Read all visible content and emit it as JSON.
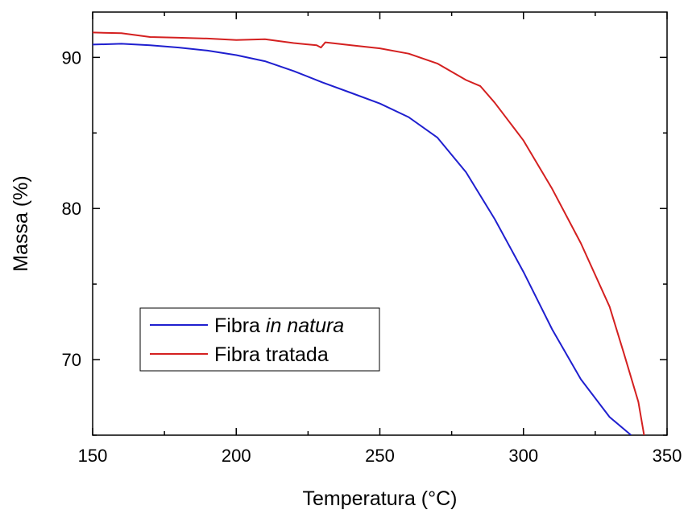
{
  "chart_data": {
    "type": "line",
    "xlabel": "Temperatura (°C)",
    "ylabel": "Massa (%)",
    "xlim": [
      150,
      350
    ],
    "ylim": [
      65,
      93
    ],
    "xticks": [
      150,
      200,
      250,
      300,
      350
    ],
    "yticks": [
      70,
      80,
      90
    ],
    "grid": false,
    "legend_position": "bottom-left",
    "series": [
      {
        "name_parts": [
          "Fibra ",
          "in natura"
        ],
        "color": "#1f1fcf",
        "x": [
          150,
          160,
          170,
          180,
          190,
          200,
          210,
          220,
          230,
          240,
          250,
          260,
          270,
          280,
          290,
          300,
          310,
          320,
          330,
          337.5
        ],
        "y": [
          90.85,
          90.9,
          90.8,
          90.65,
          90.45,
          90.15,
          89.75,
          89.1,
          88.35,
          87.65,
          86.95,
          86.05,
          84.7,
          82.4,
          79.3,
          75.8,
          72.0,
          68.7,
          66.2,
          65.0
        ]
      },
      {
        "name": "Fibra tratada",
        "color": "#d42020",
        "x": [
          150,
          160,
          170,
          180,
          190,
          200,
          210,
          220,
          228,
          229.5,
          231,
          240,
          250,
          260,
          270,
          280,
          285,
          290,
          300,
          310,
          320,
          330,
          335,
          340,
          342
        ],
        "y": [
          91.65,
          91.6,
          91.35,
          91.3,
          91.25,
          91.15,
          91.2,
          90.95,
          90.8,
          90.65,
          91.0,
          90.8,
          90.6,
          90.25,
          89.6,
          88.5,
          88.1,
          87.0,
          84.5,
          81.3,
          77.7,
          73.5,
          70.4,
          67.2,
          65.0
        ]
      }
    ]
  }
}
